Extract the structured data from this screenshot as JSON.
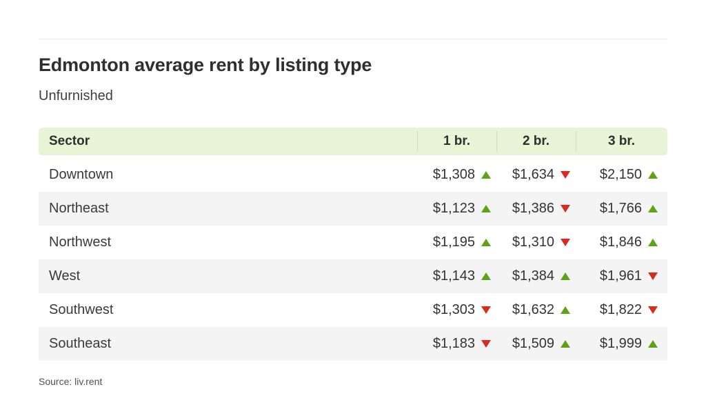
{
  "header": {
    "title": "Edmonton average rent by listing type",
    "subtitle": "Unfurnished"
  },
  "table": {
    "columns": [
      "Sector",
      "1 br.",
      "2 br.",
      "3 br."
    ],
    "rows": [
      {
        "sector": "Downtown",
        "values": [
          {
            "price": "$1,308",
            "trend": "up"
          },
          {
            "price": "$1,634",
            "trend": "down"
          },
          {
            "price": "$2,150",
            "trend": "up"
          }
        ]
      },
      {
        "sector": "Northeast",
        "values": [
          {
            "price": "$1,123",
            "trend": "up"
          },
          {
            "price": "$1,386",
            "trend": "down"
          },
          {
            "price": "$1,766",
            "trend": "up"
          }
        ]
      },
      {
        "sector": "Northwest",
        "values": [
          {
            "price": "$1,195",
            "trend": "up"
          },
          {
            "price": "$1,310",
            "trend": "down"
          },
          {
            "price": "$1,846",
            "trend": "up"
          }
        ]
      },
      {
        "sector": "West",
        "values": [
          {
            "price": "$1,143",
            "trend": "up"
          },
          {
            "price": "$1,384",
            "trend": "up"
          },
          {
            "price": "$1,961",
            "trend": "down"
          }
        ]
      },
      {
        "sector": "Southwest",
        "values": [
          {
            "price": "$1,303",
            "trend": "down"
          },
          {
            "price": "$1,632",
            "trend": "up"
          },
          {
            "price": "$1,822",
            "trend": "down"
          }
        ]
      },
      {
        "sector": "Southeast",
        "values": [
          {
            "price": "$1,183",
            "trend": "down"
          },
          {
            "price": "$1,509",
            "trend": "up"
          },
          {
            "price": "$1,999",
            "trend": "up"
          }
        ]
      }
    ]
  },
  "footer": {
    "source": "Source: liv.rent"
  },
  "colors": {
    "header_bg": "#e8f4d6",
    "header_divider": "#cedcb8",
    "row_stripe": "#f4f4f4",
    "up_arrow": "#5da315",
    "down_arrow": "#da2a1e"
  },
  "chart_data": {
    "type": "table",
    "title": "Edmonton average rent by listing type",
    "subtitle": "Unfurnished",
    "columns": [
      "Sector",
      "1 br.",
      "2 br.",
      "3 br."
    ],
    "categories": [
      "Downtown",
      "Northeast",
      "Northwest",
      "West",
      "Southwest",
      "Southeast"
    ],
    "series": [
      {
        "name": "1 br.",
        "values": [
          1308,
          1123,
          1195,
          1143,
          1303,
          1183
        ],
        "trends": [
          "up",
          "up",
          "up",
          "up",
          "down",
          "down"
        ]
      },
      {
        "name": "2 br.",
        "values": [
          1634,
          1386,
          1310,
          1384,
          1632,
          1509
        ],
        "trends": [
          "down",
          "down",
          "down",
          "up",
          "up",
          "up"
        ]
      },
      {
        "name": "3 br.",
        "values": [
          2150,
          1766,
          1846,
          1961,
          1822,
          1999
        ],
        "trends": [
          "up",
          "up",
          "up",
          "down",
          "down",
          "up"
        ]
      }
    ],
    "source": "liv.rent"
  }
}
